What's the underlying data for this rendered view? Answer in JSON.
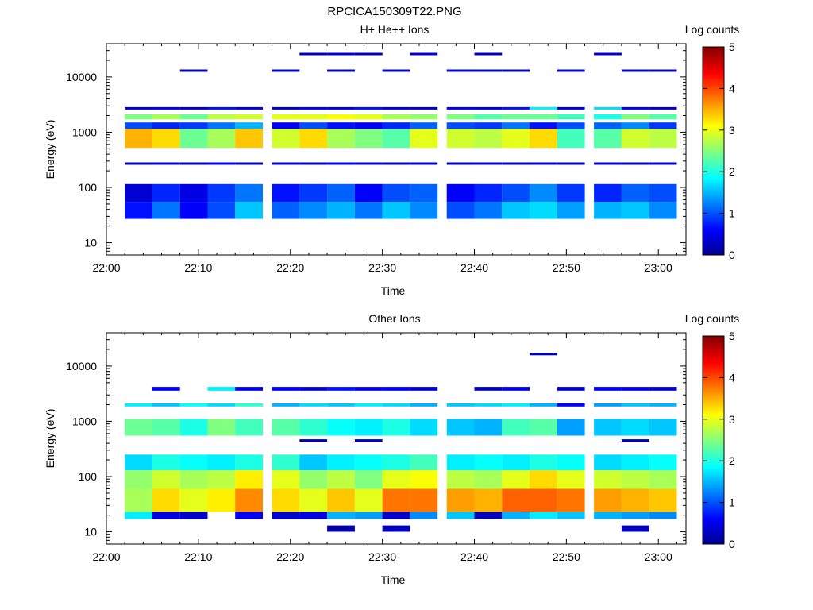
{
  "title": "RPCICA150309T22.PNG",
  "chart_data": [
    {
      "type": "heatmap",
      "title": "H+ He++ Ions",
      "xlabel": "Time",
      "ylabel": "Energy (eV)",
      "colorbar_label": "Log counts",
      "colorbar_ticks": [
        "0",
        "1",
        "2",
        "3",
        "4",
        "5"
      ],
      "colorbar_range": [
        0,
        5
      ],
      "x_tick_labels": [
        "22:00",
        "22:10",
        "22:20",
        "22:30",
        "22:40",
        "22:50",
        "23:00"
      ],
      "y_tick_labels": [
        "10",
        "100",
        "1000",
        "10000"
      ],
      "y_scale": "log",
      "ylim": [
        6,
        40000
      ],
      "xlim": [
        "22:00",
        "22:63"
      ],
      "columns_start": [
        "22:02",
        "22:05",
        "22:08",
        "22:11",
        "22:14",
        "22:18",
        "22:21",
        "22:24",
        "22:27",
        "22:30",
        "22:33",
        "22:37",
        "22:40",
        "22:43",
        "22:46",
        "22:49",
        "22:53",
        "22:56",
        "22:59"
      ],
      "blocks": [
        {
          "e": [
            27,
            55
          ],
          "v": [
            0.7,
            1.2,
            0.6,
            1.0,
            1.6,
            1.1,
            1.3,
            1.5,
            1.2,
            1.6,
            1.3,
            1.0,
            1.2,
            1.6,
            1.7,
            1.4,
            1.5,
            1.6,
            1.3
          ]
        },
        {
          "e": [
            55,
            115
          ],
          "v": [
            0.4,
            0.8,
            0.5,
            0.9,
            1.2,
            0.7,
            0.9,
            1.1,
            0.6,
            1.0,
            1.1,
            0.6,
            0.8,
            1.0,
            1.3,
            0.9,
            0.8,
            1.1,
            1.0
          ]
        },
        {
          "e": [
            520,
            1150
          ],
          "v": [
            3.5,
            3.3,
            2.4,
            2.7,
            3.4,
            2.9,
            3.3,
            2.7,
            2.5,
            2.3,
            3.0,
            2.9,
            2.8,
            3.0,
            3.3,
            2.2,
            2.3,
            2.9,
            2.8
          ]
        },
        {
          "e": [
            1150,
            1500
          ],
          "v": [
            1.0,
            0.8,
            0.9,
            1.2,
            1.5,
            0.6,
            1.0,
            0.7,
            0.6,
            0.8,
            1.1,
            1.0,
            0.9,
            1.2,
            0.7,
            1.0,
            1.1,
            1.3,
            0.9
          ]
        },
        {
          "e": [
            1700,
            2100
          ],
          "v": [
            2.5,
            2.7,
            2.4,
            2.8,
            2.9,
            3.0,
            3.0,
            3.1,
            3.0,
            2.7,
            2.6,
            2.5,
            2.3,
            2.4,
            2.4,
            2.2,
            2.0,
            2.5,
            2.3
          ]
        }
      ],
      "lines": [
        {
          "e": 2700,
          "v": [
            0.5,
            0.6,
            0.4,
            0.7,
            0.5,
            0.4,
            0.6,
            0.5,
            0.7,
            0.5,
            0.4,
            0.6,
            0.5,
            0.7,
            1.8,
            0.5,
            1.7,
            0.6,
            0.4
          ]
        },
        {
          "e": 270,
          "v": [
            0.3,
            0.4,
            0.3,
            0.5,
            0.3,
            0.4,
            0.3,
            0.5,
            0.4,
            0.3,
            0.4,
            0.3,
            0.4,
            0.3,
            0.4,
            0.3,
            0.4,
            0.3,
            0.4
          ]
        },
        {
          "e": 13000,
          "v": [
            null,
            null,
            0.3,
            null,
            null,
            0.4,
            null,
            0.3,
            null,
            0.4,
            null,
            0.5,
            0.4,
            0.3,
            null,
            0.5,
            null,
            0.4,
            0.3
          ]
        },
        {
          "e": 26000,
          "v": [
            null,
            null,
            null,
            null,
            null,
            null,
            0.3,
            0.4,
            0.3,
            null,
            0.4,
            null,
            0.3,
            null,
            null,
            null,
            0.4,
            null,
            null
          ]
        }
      ]
    },
    {
      "type": "heatmap",
      "title": "Other Ions",
      "xlabel": "Time",
      "ylabel": "Energy (eV)",
      "colorbar_label": "Log counts",
      "colorbar_ticks": [
        "0",
        "1",
        "2",
        "3",
        "4",
        "5"
      ],
      "colorbar_range": [
        0,
        5
      ],
      "x_tick_labels": [
        "22:00",
        "22:10",
        "22:20",
        "22:30",
        "22:40",
        "22:50",
        "23:00"
      ],
      "y_tick_labels": [
        "10",
        "100",
        "1000",
        "10000"
      ],
      "y_scale": "log",
      "ylim": [
        6,
        40000
      ],
      "xlim": [
        "22:00",
        "22:63"
      ],
      "columns_start": [
        "22:02",
        "22:05",
        "22:08",
        "22:11",
        "22:14",
        "22:18",
        "22:21",
        "22:24",
        "22:27",
        "22:30",
        "22:33",
        "22:37",
        "22:40",
        "22:43",
        "22:46",
        "22:49",
        "22:53",
        "22:56",
        "22:59"
      ],
      "blocks": [
        {
          "e": [
            17,
            23
          ],
          "v": [
            1.8,
            0.5,
            0.4,
            null,
            0.6,
            0.4,
            0.5,
            1.5,
            1.4,
            0.4,
            1.3,
            1.6,
            0.3,
            1.5,
            1.8,
            1.6,
            1.5,
            1.4,
            1.3
          ]
        },
        {
          "e": [
            23,
            60
          ],
          "v": [
            2.7,
            3.3,
            3.0,
            3.2,
            3.7,
            3.3,
            3.0,
            3.4,
            3.0,
            3.8,
            3.8,
            3.6,
            3.5,
            3.9,
            3.9,
            3.8,
            3.6,
            3.5,
            3.4
          ]
        },
        {
          "e": [
            60,
            130
          ],
          "v": [
            2.6,
            2.9,
            2.7,
            2.8,
            3.2,
            3.0,
            2.6,
            2.8,
            2.5,
            3.0,
            3.1,
            2.8,
            2.7,
            3.0,
            3.3,
            3.0,
            2.9,
            2.8,
            2.7
          ]
        },
        {
          "e": [
            130,
            250
          ],
          "v": [
            1.7,
            2.0,
            1.9,
            1.8,
            2.0,
            2.1,
            1.6,
            1.8,
            1.9,
            2.0,
            2.2,
            1.8,
            1.9,
            1.8,
            2.0,
            1.9,
            1.7,
            1.8,
            1.9
          ]
        },
        {
          "e": [
            550,
            1100
          ],
          "v": [
            2.4,
            2.3,
            2.0,
            2.5,
            2.2,
            2.3,
            2.1,
            1.9,
            1.8,
            2.0,
            1.7,
            1.6,
            1.5,
            2.2,
            2.3,
            1.4,
            1.6,
            1.7,
            1.6
          ]
        },
        {
          "e": [
            1850,
            2100
          ],
          "v": [
            1.8,
            1.6,
            1.9,
            1.7,
            2.1,
            1.5,
            1.7,
            1.6,
            1.8,
            1.7,
            1.5,
            1.6,
            1.7,
            1.8,
            1.5,
            0.6,
            1.4,
            1.6,
            1.5
          ]
        },
        {
          "e": [
            3600,
            4200
          ],
          "v": [
            null,
            0.6,
            null,
            1.8,
            0.5,
            0.6,
            0.4,
            0.7,
            0.5,
            0.6,
            0.4,
            null,
            0.3,
            0.5,
            null,
            0.4,
            0.6,
            0.5,
            0.4
          ]
        },
        {
          "e": [
            10,
            13
          ],
          "v": [
            null,
            null,
            null,
            null,
            null,
            null,
            null,
            0.2,
            null,
            0.3,
            null,
            null,
            null,
            null,
            null,
            null,
            null,
            0.3,
            null
          ]
        }
      ],
      "lines": [
        {
          "e": 16500,
          "v": [
            null,
            null,
            null,
            null,
            null,
            null,
            null,
            null,
            null,
            null,
            null,
            null,
            null,
            null,
            0.3,
            null,
            null,
            null,
            null
          ]
        },
        {
          "e": 450,
          "v": [
            null,
            null,
            null,
            null,
            null,
            null,
            0.3,
            null,
            0.4,
            null,
            null,
            null,
            null,
            null,
            null,
            null,
            null,
            0.3,
            null
          ]
        }
      ]
    }
  ]
}
